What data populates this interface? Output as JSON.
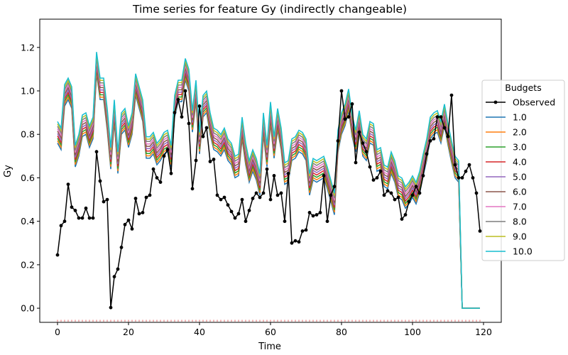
{
  "chart_data": {
    "type": "line",
    "title": "Time series for feature Gy (indirectly changeable)",
    "xlabel": "Time",
    "ylabel": "Gy",
    "xlim": [
      -5,
      125
    ],
    "ylim": [
      -0.065,
      1.33
    ],
    "xticks": [
      0,
      20,
      40,
      60,
      80,
      100,
      120
    ],
    "yticks": [
      0.0,
      0.2,
      0.4,
      0.6,
      0.8,
      1.0,
      1.2
    ],
    "grid": false,
    "legend": {
      "title": "Budgets",
      "placement": "right"
    },
    "observed": {
      "name": "Observed",
      "color": "#000000",
      "x": [
        0,
        1,
        2,
        3,
        4,
        5,
        6,
        7,
        8,
        9,
        10,
        11,
        12,
        13,
        14,
        15,
        16,
        17,
        18,
        19,
        20,
        21,
        22,
        23,
        24,
        25,
        26,
        27,
        28,
        29,
        30,
        31,
        32,
        33,
        34,
        35,
        36,
        37,
        38,
        39,
        40,
        41,
        42,
        43,
        44,
        45,
        46,
        47,
        48,
        49,
        50,
        51,
        52,
        53,
        54,
        55,
        56,
        57,
        58,
        59,
        60,
        61,
        62,
        63,
        64,
        65,
        66,
        67,
        68,
        69,
        70,
        71,
        72,
        73,
        74,
        75,
        76,
        77,
        78,
        79,
        80,
        81,
        82,
        83,
        84,
        85,
        86,
        87,
        88,
        89,
        90,
        91,
        92,
        93,
        94,
        95,
        96,
        97,
        98,
        99,
        100,
        101,
        102,
        103,
        104,
        105,
        106,
        107,
        108,
        109,
        110,
        111,
        112,
        113,
        114,
        115,
        116,
        117,
        118,
        119
      ],
      "values": [
        0.245,
        0.38,
        0.4,
        0.57,
        0.465,
        0.45,
        0.415,
        0.415,
        0.46,
        0.415,
        0.415,
        0.72,
        0.585,
        0.49,
        0.5,
        0.003,
        0.145,
        0.18,
        0.28,
        0.385,
        0.405,
        0.365,
        0.505,
        0.435,
        0.44,
        0.51,
        0.52,
        0.64,
        0.6,
        0.58,
        0.7,
        0.73,
        0.62,
        0.9,
        0.96,
        0.88,
        1.0,
        0.85,
        0.55,
        0.68,
        0.93,
        0.79,
        0.83,
        0.675,
        0.685,
        0.52,
        0.5,
        0.51,
        0.475,
        0.445,
        0.415,
        0.435,
        0.5,
        0.4,
        0.45,
        0.505,
        0.53,
        0.51,
        0.53,
        0.64,
        0.5,
        0.61,
        0.52,
        0.53,
        0.4,
        0.62,
        0.3,
        0.31,
        0.305,
        0.355,
        0.36,
        0.44,
        0.425,
        0.43,
        0.44,
        0.61,
        0.4,
        0.52,
        0.56,
        0.77,
        1.0,
        0.87,
        0.88,
        0.94,
        0.67,
        0.81,
        0.76,
        0.72,
        0.65,
        0.59,
        0.6,
        0.63,
        0.52,
        0.54,
        0.53,
        0.5,
        0.51,
        0.41,
        0.43,
        0.49,
        0.52,
        0.56,
        0.53,
        0.61,
        0.71,
        0.77,
        0.78,
        0.88,
        0.88,
        0.83,
        0.79,
        0.98,
        0.66,
        0.6,
        0.6,
        0.63,
        0.66,
        0.6,
        0.53,
        0.355
      ]
    },
    "budget_labels": [
      "1.0",
      "2.0",
      "3.0",
      "4.0",
      "5.0",
      "6.0",
      "7.0",
      "8.0",
      "9.0",
      "10.0"
    ],
    "budget_colors": [
      "#1f77b4",
      "#ff7f0e",
      "#2ca02c",
      "#d62728",
      "#9467bd",
      "#8c564b",
      "#e377c2",
      "#7f7f7f",
      "#bcbd22",
      "#17becf"
    ],
    "budget_spread": [
      0.0,
      0.011,
      0.022,
      0.033,
      0.044,
      0.055,
      0.066,
      0.077,
      0.088,
      0.099
    ],
    "budget_base": {
      "x": [
        0,
        1,
        2,
        3,
        4,
        5,
        6,
        7,
        8,
        9,
        10,
        11,
        12,
        13,
        14,
        15,
        16,
        17,
        18,
        19,
        20,
        21,
        22,
        23,
        24,
        25,
        26,
        27,
        28,
        29,
        30,
        31,
        32,
        33,
        34,
        35,
        36,
        37,
        38,
        39,
        40,
        41,
        42,
        43,
        44,
        45,
        46,
        47,
        48,
        49,
        50,
        51,
        52,
        53,
        54,
        55,
        56,
        57,
        58,
        59,
        60,
        61,
        62,
        63,
        64,
        65,
        66,
        67,
        68,
        69,
        70,
        71,
        72,
        73,
        74,
        75,
        76,
        77,
        78,
        79,
        80,
        81,
        82,
        83,
        84,
        85,
        86,
        87,
        88,
        89,
        90,
        91,
        92,
        93,
        94,
        95,
        96,
        97,
        98,
        99,
        100,
        101,
        102,
        103,
        104,
        105,
        106,
        107,
        108,
        109,
        110,
        111,
        112,
        113,
        114,
        115,
        116,
        117,
        118,
        119
      ],
      "values": [
        0.76,
        0.73,
        0.93,
        0.96,
        0.92,
        0.65,
        0.7,
        0.79,
        0.8,
        0.74,
        0.78,
        1.08,
        0.96,
        0.96,
        0.82,
        0.64,
        0.86,
        0.62,
        0.8,
        0.82,
        0.74,
        0.8,
        0.98,
        0.92,
        0.86,
        0.69,
        0.69,
        0.71,
        0.66,
        0.68,
        0.71,
        0.72,
        0.65,
        0.88,
        0.95,
        0.95,
        1.05,
        1.0,
        0.81,
        0.95,
        0.71,
        0.88,
        0.9,
        0.8,
        0.73,
        0.72,
        0.7,
        0.73,
        0.68,
        0.66,
        0.6,
        0.61,
        0.78,
        0.66,
        0.58,
        0.63,
        0.59,
        0.52,
        0.8,
        0.65,
        0.85,
        0.69,
        0.82,
        0.73,
        0.57,
        0.58,
        0.68,
        0.69,
        0.72,
        0.71,
        0.68,
        0.52,
        0.59,
        0.58,
        0.59,
        0.6,
        0.55,
        0.49,
        0.43,
        0.72,
        0.8,
        0.84,
        0.91,
        0.79,
        0.72,
        0.81,
        0.7,
        0.68,
        0.76,
        0.75,
        0.63,
        0.64,
        0.56,
        0.55,
        0.62,
        0.58,
        0.51,
        0.5,
        0.46,
        0.48,
        0.51,
        0.48,
        0.53,
        0.61,
        0.68,
        0.78,
        0.8,
        0.81,
        0.76,
        0.84,
        0.75,
        0.67,
        0.6,
        0.58,
        0.0,
        0.0,
        0.0,
        0.0,
        0.0,
        0.0
      ]
    }
  }
}
